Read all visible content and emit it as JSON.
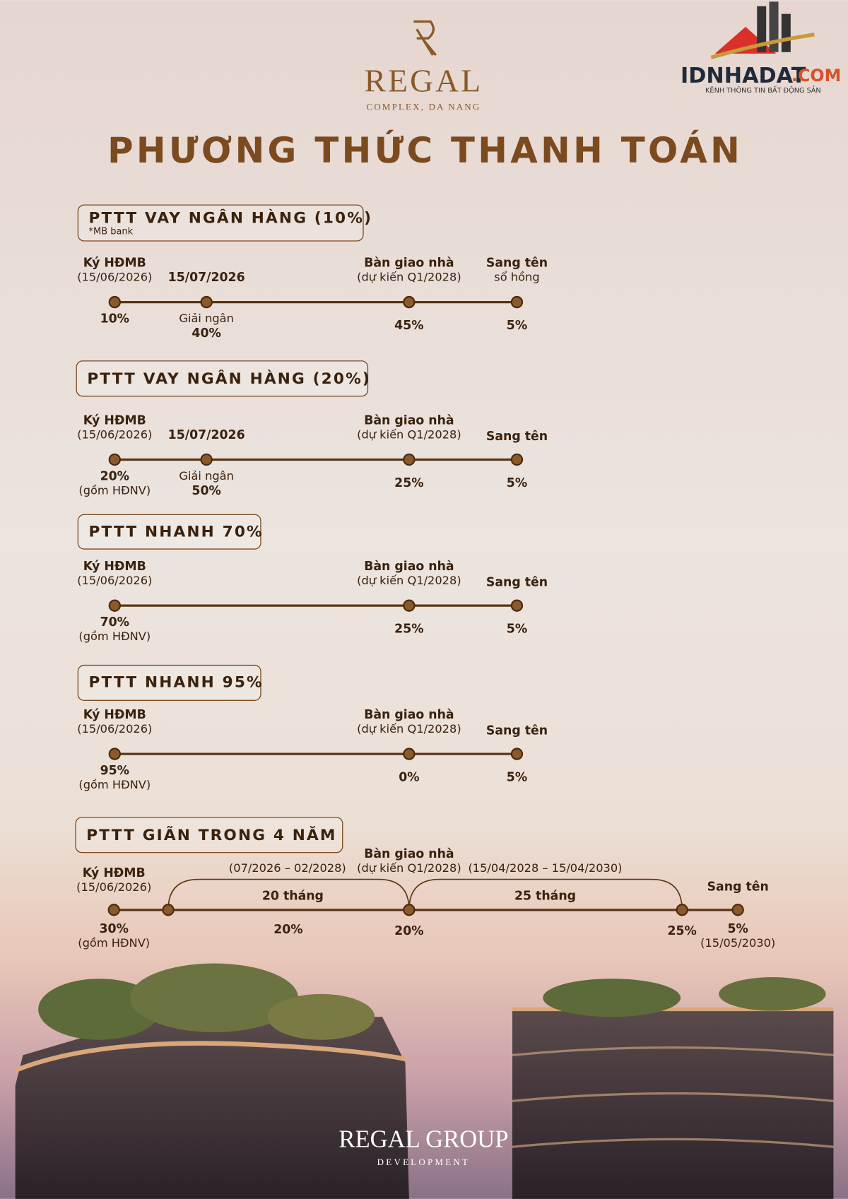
{
  "header": {
    "brand": "REGAL",
    "brand_sub": "COMPLEX, DA NANG",
    "title": "PHƯƠNG THỨC THANH TOÁN"
  },
  "watermark": {
    "name": "IDNHADAT",
    "domain": ".COM",
    "tagline": "KÊNH THÔNG TIN BẤT ĐỘNG SẢN"
  },
  "plans": [
    {
      "title": "PTTT VAY NGÂN HÀNG (10%)",
      "note": "*MB bank",
      "milestones": [
        {
          "top": [
            "Ký HĐMB",
            "(15/06/2026)"
          ],
          "bottom": [
            "10%"
          ]
        },
        {
          "top": [
            "15/07/2026"
          ],
          "bottom": [
            "Giải ngân",
            "40%"
          ]
        },
        {
          "top": [
            "Bàn giao nhà",
            "(dự kiến Q1/2028)"
          ],
          "bottom": [
            "45%"
          ]
        },
        {
          "top": [
            "Sang tên",
            "sổ hồng"
          ],
          "bottom": [
            "5%"
          ]
        }
      ]
    },
    {
      "title": "PTTT VAY NGÂN HÀNG (20%)",
      "milestones": [
        {
          "top": [
            "Ký HĐMB",
            "(15/06/2026)"
          ],
          "bottom": [
            "20%",
            "(gồm HĐNV)"
          ]
        },
        {
          "top": [
            "15/07/2026"
          ],
          "bottom": [
            "Giải ngân",
            "50%"
          ]
        },
        {
          "top": [
            "Bàn giao nhà",
            "(dự kiến Q1/2028)"
          ],
          "bottom": [
            "25%"
          ]
        },
        {
          "top": [
            "Sang tên"
          ],
          "bottom": [
            "5%"
          ]
        }
      ]
    },
    {
      "title": "PTTT NHANH 70%",
      "milestones": [
        {
          "top": [
            "Ký HĐMB",
            "(15/06/2026)"
          ],
          "bottom": [
            "70%",
            "(gồm HĐNV)"
          ]
        },
        {
          "top": [
            "Bàn giao nhà",
            "(dự kiến Q1/2028)"
          ],
          "bottom": [
            "25%"
          ]
        },
        {
          "top": [
            "Sang tên"
          ],
          "bottom": [
            "5%"
          ]
        }
      ]
    },
    {
      "title": "PTTT NHANH 95%",
      "milestones": [
        {
          "top": [
            "Ký HĐMB",
            "(15/06/2026)"
          ],
          "bottom": [
            "95%",
            "(gồm HĐNV)"
          ]
        },
        {
          "top": [
            "Bàn giao nhà",
            "(dự kiến Q1/2028)"
          ],
          "bottom": [
            "0%"
          ]
        },
        {
          "top": [
            "Sang tên"
          ],
          "bottom": [
            "5%"
          ]
        }
      ]
    },
    {
      "title": "PTTT GIÃN TRONG 4 NĂM",
      "milestones": [
        {
          "top": [
            "Ký HĐMB",
            "(15/06/2026)"
          ],
          "bottom": [
            "30%",
            "(gồm HĐNV)"
          ]
        },
        {
          "top": [
            "Bàn giao nhà",
            "(dự kiến Q1/2028)"
          ],
          "bottom": [
            "20%"
          ]
        },
        {
          "bottom": [
            "25%"
          ]
        },
        {
          "top": [
            "Sang tên"
          ],
          "bottom": [
            "5%",
            "(15/05/2030)"
          ]
        }
      ],
      "periods": [
        {
          "range": "(07/2026 – 02/2028)",
          "duration": "20 tháng",
          "amount": "20%"
        },
        {
          "range": "(15/04/2028 – 15/04/2030)",
          "duration": "25 tháng"
        }
      ]
    }
  ],
  "footer": {
    "brand": "REGAL GROUP",
    "sub": "DEVELOPMENT"
  }
}
